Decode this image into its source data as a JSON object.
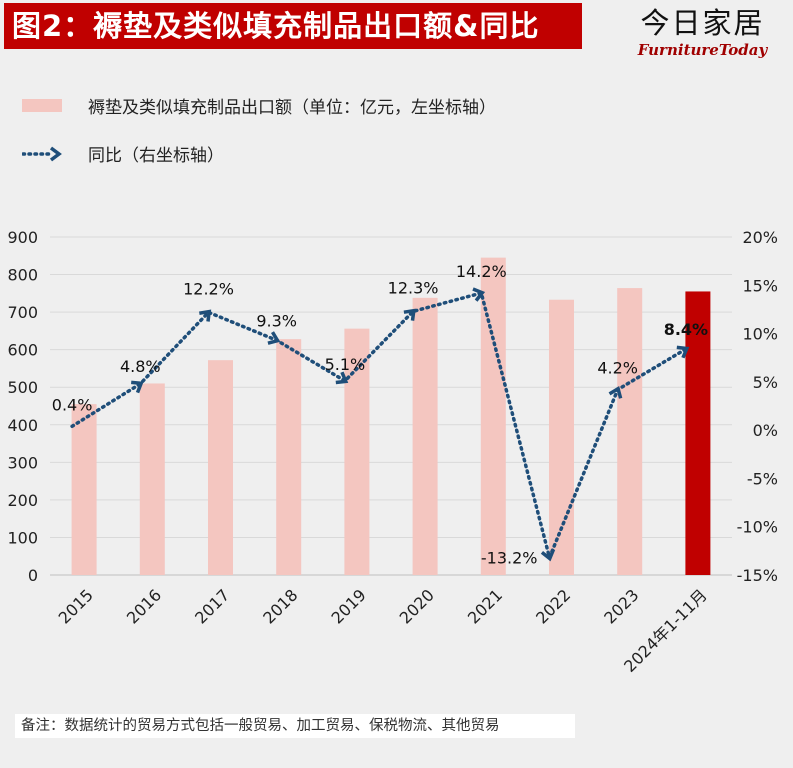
{
  "header": {
    "title": "图2：褥垫及类似填充制品出口额&同比",
    "brand_cn": "今日家居",
    "brand_en": "FurnitureToday"
  },
  "legend": {
    "bar_label": "褥垫及类似填充制品出口额（单位：亿元，左坐标轴）",
    "line_label": "同比（右坐标轴）"
  },
  "note": "备注：数据统计的贸易方式包括一般贸易、加工贸易、保税物流、其他贸易",
  "chart_data": {
    "type": "bar",
    "categories": [
      "2015",
      "2016",
      "2017",
      "2018",
      "2019",
      "2020",
      "2021",
      "2022",
      "2023",
      "2024年1-11月"
    ],
    "series": [
      {
        "name": "褥垫及类似填充制品出口额（单位：亿元，左坐标轴）",
        "type": "bar",
        "axis": "left",
        "values": [
          455,
          510,
          572,
          628,
          656,
          738,
          845,
          733,
          764,
          755
        ],
        "colors": [
          "#f4c6c0",
          "#f4c6c0",
          "#f4c6c0",
          "#f4c6c0",
          "#f4c6c0",
          "#f4c6c0",
          "#f4c6c0",
          "#f4c6c0",
          "#f4c6c0",
          "#c00000"
        ]
      },
      {
        "name": "同比（右坐标轴）",
        "type": "line",
        "axis": "right",
        "style": "dotted-arrow",
        "color": "#1f4e79",
        "values": [
          0.4,
          4.8,
          12.2,
          9.3,
          5.1,
          12.3,
          14.2,
          -13.2,
          4.2,
          8.4
        ],
        "labels": [
          "0.4%",
          "4.8%",
          "12.2%",
          "9.3%",
          "5.1%",
          "12.3%",
          "14.2%",
          "-13.2%",
          "4.2%",
          "8.4%"
        ],
        "label_bold": [
          false,
          false,
          false,
          false,
          false,
          false,
          false,
          false,
          false,
          true
        ]
      }
    ],
    "y_left": {
      "range": [
        0,
        900
      ],
      "ticks": [
        0,
        100,
        200,
        300,
        400,
        500,
        600,
        700,
        800,
        900
      ],
      "tick_labels": [
        "0",
        "100",
        "200",
        "300",
        "400",
        "500",
        "600",
        "700",
        "800",
        "900"
      ]
    },
    "y_right": {
      "range": [
        -15,
        20
      ],
      "ticks": [
        -15,
        -10,
        -5,
        0,
        5,
        10,
        15,
        20
      ],
      "tick_labels": [
        "-15%",
        "-10%",
        "-5%",
        "0%",
        "5%",
        "10%",
        "15%",
        "20%"
      ]
    },
    "grid": true,
    "legend_position": "top-left"
  }
}
